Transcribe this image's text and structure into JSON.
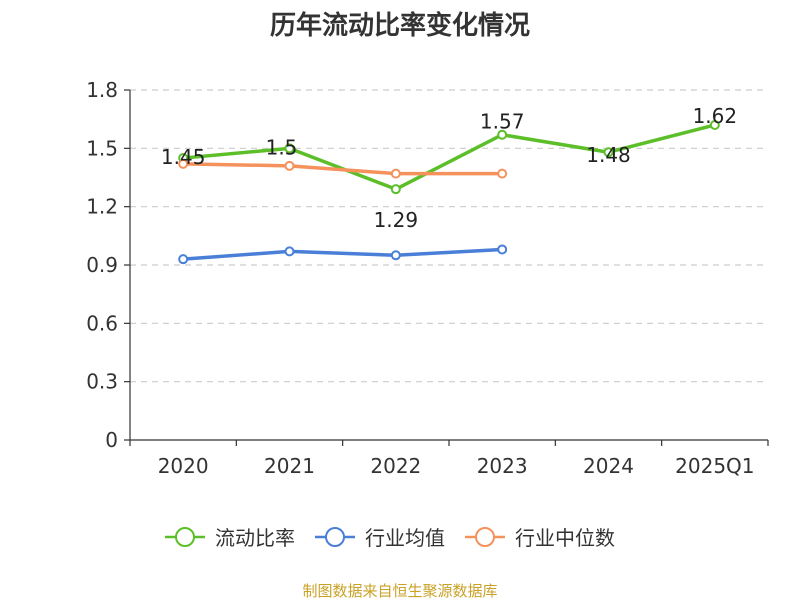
{
  "chart_data": {
    "type": "line",
    "title": "历年流动比率变化情况",
    "categories": [
      "2020",
      "2021",
      "2022",
      "2023",
      "2024",
      "2025Q1"
    ],
    "y_ticks": [
      "0",
      "0.3",
      "0.6",
      "0.9",
      "1.2",
      "1.5",
      "1.8"
    ],
    "ylim": [
      0,
      1.8
    ],
    "grid": true,
    "legend_position": "bottom",
    "series": [
      {
        "name": "流动比率",
        "color": "#5cbf2a",
        "values": [
          1.45,
          1.5,
          1.29,
          1.57,
          1.48,
          1.62
        ],
        "labels": [
          "1.45",
          "1.5",
          "1.29",
          "1.57",
          "1.48",
          "1.62"
        ],
        "show_labels": true
      },
      {
        "name": "行业均值",
        "color": "#4a7fd8",
        "values": [
          0.93,
          0.97,
          0.95,
          0.98,
          null,
          null
        ],
        "show_labels": false
      },
      {
        "name": "行业中位数",
        "color": "#f5915b",
        "values": [
          1.42,
          1.41,
          1.37,
          1.37,
          null,
          null
        ],
        "show_labels": false
      }
    ]
  },
  "source_text": "制图数据来自恒生聚源数据库"
}
